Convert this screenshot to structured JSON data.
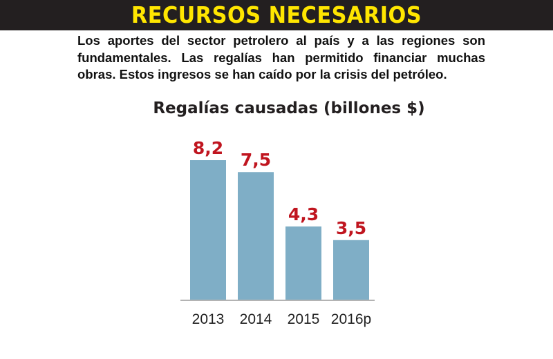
{
  "header": {
    "title": "RECURSOS NECESARIOS",
    "intro": "Los aportes del sector petrolero al país y a las regiones son fundamentales. Las regalías han permitido financiar muchas obras. Estos ingresos se han caído por la crisis del petróleo."
  },
  "colors": {
    "banner_bg": "#231f20",
    "banner_text": "#ffe600",
    "bar": "#7faec6",
    "value_label": "#c0151f",
    "axis_text": "#222222"
  },
  "chart_data": {
    "type": "bar",
    "title": "Regalías causadas (billones $)",
    "categories": [
      "2013",
      "2014",
      "2015",
      "2016p"
    ],
    "values": [
      8.2,
      7.5,
      4.3,
      3.5
    ],
    "value_labels": [
      "8,2",
      "7,5",
      "4,3",
      "3,5"
    ],
    "xlabel": "",
    "ylabel": "",
    "ylim": [
      0,
      8.2
    ],
    "grid": false,
    "legend": "none"
  }
}
